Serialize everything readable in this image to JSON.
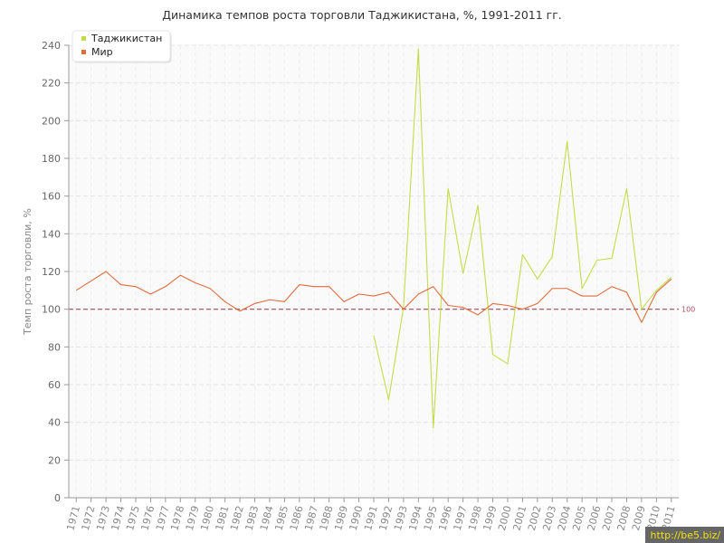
{
  "chart_data": {
    "type": "line",
    "title": "Динамика темпов роста торговли Таджикистана, %, 1991-2011 гг.",
    "xlabel": "",
    "ylabel": "Темп роста торговли, %",
    "ylim": [
      0,
      240
    ],
    "yticks": [
      0,
      20,
      40,
      60,
      80,
      100,
      120,
      140,
      160,
      180,
      200,
      220,
      240
    ],
    "x": [
      "1971",
      "1972",
      "1973",
      "1974",
      "1975",
      "1976",
      "1977",
      "1978",
      "1979",
      "1980",
      "1981",
      "1982",
      "1983",
      "1984",
      "1985",
      "1986",
      "1987",
      "1988",
      "1989",
      "1990",
      "1991",
      "1992",
      "1993",
      "1994",
      "1995",
      "1996",
      "1997",
      "1998",
      "1999",
      "2000",
      "2001",
      "2002",
      "2003",
      "2004",
      "2005",
      "2006",
      "2007",
      "2008",
      "2009",
      "2010",
      "2011"
    ],
    "series": [
      {
        "name": "Таджикистан",
        "color": "#c5dc4a",
        "values": [
          null,
          null,
          null,
          null,
          null,
          null,
          null,
          null,
          null,
          null,
          null,
          null,
          null,
          null,
          null,
          null,
          null,
          null,
          null,
          null,
          86,
          52,
          101,
          238,
          37,
          164,
          119,
          155,
          76,
          71,
          129,
          116,
          128,
          189,
          111,
          126,
          127,
          164,
          100,
          110,
          117
        ]
      },
      {
        "name": "Мир",
        "color": "#e06c3c",
        "values": [
          110,
          115,
          120,
          113,
          112,
          108,
          112,
          118,
          114,
          111,
          104,
          99,
          103,
          105,
          104,
          113,
          112,
          112,
          104,
          108,
          107,
          109,
          100,
          108,
          112,
          102,
          101,
          97,
          103,
          102,
          100,
          103,
          111,
          111,
          107,
          107,
          112,
          109,
          93,
          109,
          116
        ]
      }
    ],
    "reference_line": {
      "value": 100,
      "label": "100",
      "color": "#a84a5a"
    },
    "legend_position": "top-left",
    "grid": true
  },
  "watermark": "http://be5.biz/"
}
